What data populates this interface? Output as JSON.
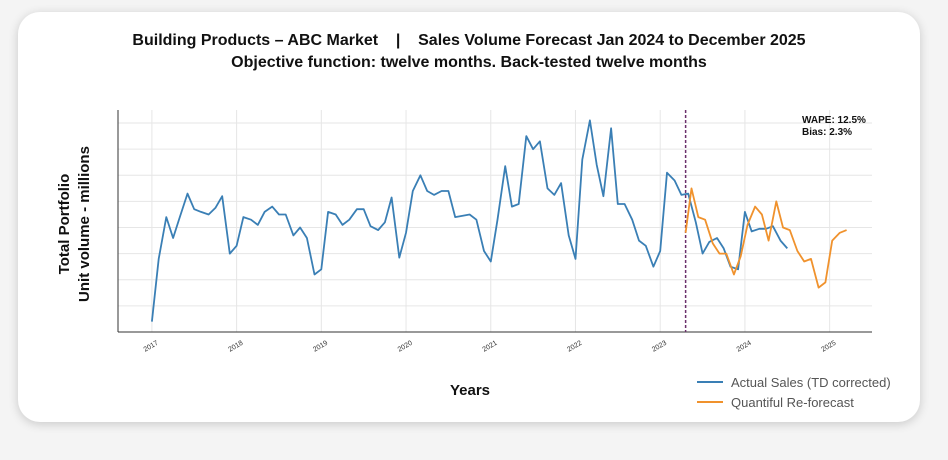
{
  "title_line1": "Building Products – ABC Market    |    Sales Volume Forecast Jan 2024 to December 2025",
  "title_line2": "Objective function: twelve months. Back-tested twelve months",
  "ylabel_line1": "Total Portfolio",
  "ylabel_line2": "Unit volume - millions",
  "xlabel": "Years",
  "metrics": {
    "wape": "WAPE: 12.5%",
    "bias": "Bias: 2.3%"
  },
  "legend": [
    {
      "label": "Actual Sales (TD corrected)",
      "color": "#3a7fb5"
    },
    {
      "label": "Quantiful Re-forecast",
      "color": "#f0922d"
    }
  ],
  "chart_data": {
    "type": "line",
    "xlabel": "Years",
    "ylabel": "Total Portfolio Unit volume - millions",
    "xlim": [
      2016.6,
      2025.5
    ],
    "ylim": [
      0,
      8.5
    ],
    "y_tick_labels_shown": false,
    "x_ticks": [
      "2017",
      "2018",
      "2019",
      "2020",
      "2021",
      "2022",
      "2023",
      "2024",
      "2025"
    ],
    "grid": true,
    "legend_position": "bottom-right",
    "forecast_divider_x": 2023.3,
    "annotations": [
      "WAPE: 12.5%",
      "Bias: 2.3%"
    ],
    "series": [
      {
        "name": "Actual Sales (TD corrected)",
        "color": "#3a7fb5",
        "x": [
          2017.0,
          2017.08,
          2017.17,
          2017.25,
          2017.33,
          2017.42,
          2017.5,
          2017.58,
          2017.67,
          2017.75,
          2017.83,
          2017.92,
          2018.0,
          2018.08,
          2018.17,
          2018.25,
          2018.33,
          2018.42,
          2018.5,
          2018.58,
          2018.67,
          2018.75,
          2018.83,
          2018.92,
          2019.0,
          2019.08,
          2019.17,
          2019.25,
          2019.33,
          2019.42,
          2019.5,
          2019.58,
          2019.67,
          2019.75,
          2019.83,
          2019.92,
          2020.0,
          2020.08,
          2020.17,
          2020.25,
          2020.33,
          2020.42,
          2020.5,
          2020.58,
          2020.67,
          2020.75,
          2020.83,
          2020.92,
          2021.0,
          2021.08,
          2021.17,
          2021.25,
          2021.33,
          2021.42,
          2021.5,
          2021.58,
          2021.67,
          2021.75,
          2021.83,
          2021.92,
          2022.0,
          2022.08,
          2022.17,
          2022.25,
          2022.33,
          2022.42,
          2022.5,
          2022.58,
          2022.67,
          2022.75,
          2022.83,
          2022.92,
          2023.0,
          2023.08,
          2023.17,
          2023.25,
          2023.33,
          2023.42,
          2023.5,
          2023.58,
          2023.67,
          2023.75,
          2023.83,
          2023.92,
          2024.0,
          2024.08,
          2024.17,
          2024.25,
          2024.33,
          2024.42,
          2024.5
        ],
        "y": [
          0.4,
          2.8,
          4.4,
          3.6,
          4.4,
          5.3,
          4.7,
          4.6,
          4.5,
          4.75,
          5.2,
          3.0,
          3.3,
          4.4,
          4.3,
          4.1,
          4.6,
          4.8,
          4.5,
          4.5,
          3.7,
          4.0,
          3.6,
          2.2,
          2.4,
          4.6,
          4.5,
          4.1,
          4.3,
          4.7,
          4.7,
          4.05,
          3.9,
          4.2,
          5.15,
          2.85,
          3.8,
          5.4,
          6.0,
          5.4,
          5.25,
          5.4,
          5.4,
          4.4,
          4.45,
          4.5,
          4.3,
          3.1,
          2.7,
          4.3,
          6.35,
          4.8,
          4.9,
          7.5,
          7.0,
          7.3,
          5.5,
          5.25,
          5.7,
          3.7,
          2.8,
          6.6,
          8.1,
          6.4,
          5.2,
          7.8,
          4.9,
          4.9,
          4.3,
          3.5,
          3.3,
          2.5,
          3.1,
          6.1,
          5.8,
          5.25,
          5.3,
          4.2,
          3.0,
          3.45,
          3.6,
          3.2,
          2.5,
          2.4,
          4.6,
          3.85,
          3.95,
          3.95,
          4.05,
          3.5,
          3.2
        ]
      },
      {
        "name": "Quantiful Re-forecast",
        "color": "#f0922d",
        "x": [
          2023.3,
          2023.37,
          2023.45,
          2023.53,
          2023.62,
          2023.7,
          2023.78,
          2023.87,
          2023.95,
          2024.03,
          2024.12,
          2024.2,
          2024.28,
          2024.37,
          2024.45,
          2024.53,
          2024.62,
          2024.7,
          2024.78,
          2024.87,
          2024.95,
          2025.03,
          2025.12,
          2025.2
        ],
        "y": [
          3.8,
          5.5,
          4.4,
          4.3,
          3.4,
          3.0,
          3.0,
          2.2,
          2.9,
          4.1,
          4.8,
          4.5,
          3.5,
          5.0,
          4.0,
          3.9,
          3.1,
          2.7,
          2.8,
          1.7,
          1.9,
          3.5,
          3.8,
          3.9
        ]
      }
    ]
  }
}
